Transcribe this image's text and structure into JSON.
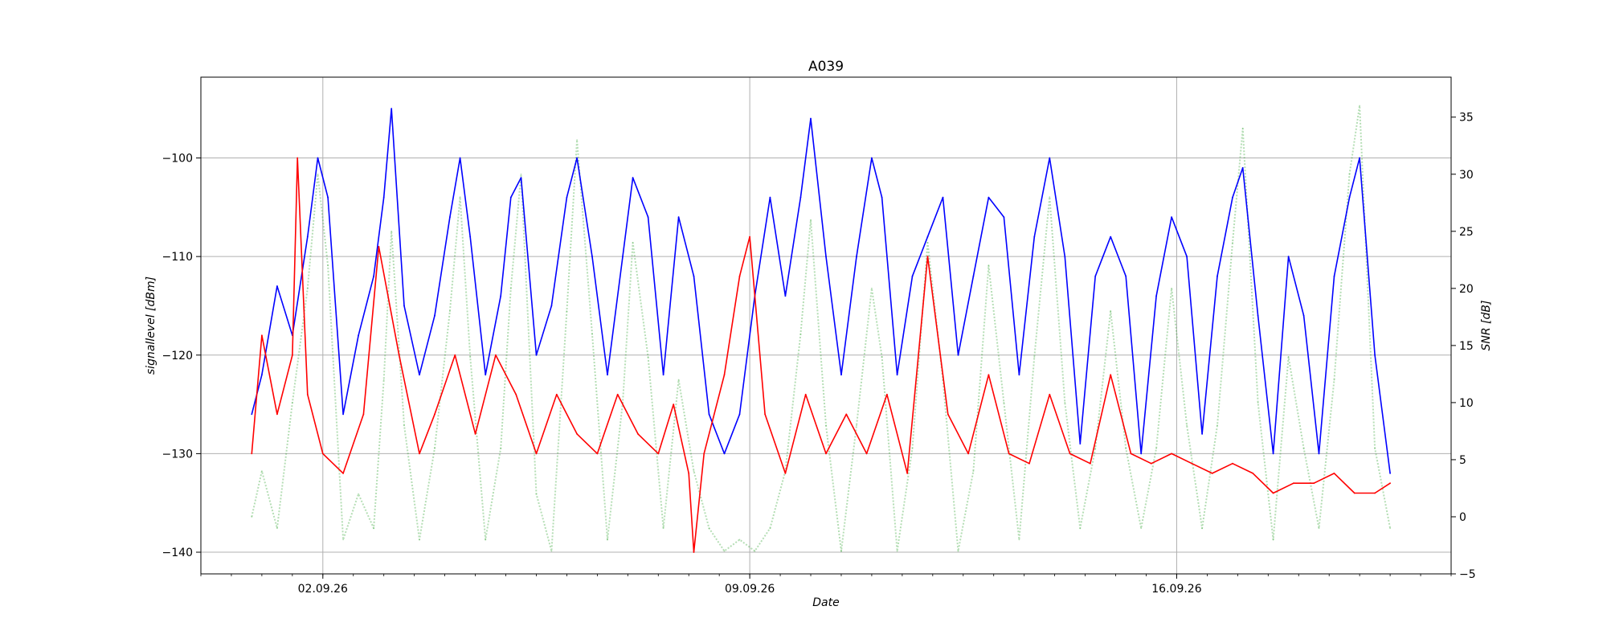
{
  "chart_data": {
    "type": "line",
    "title": "A039",
    "xlabel": "Date",
    "ylabel_left": "signallevel [dBm]",
    "ylabel_right": "SNR [dB]",
    "x_range": [
      "2026-08-31T00:00",
      "2026-09-20T12:00"
    ],
    "x_ticks": [
      {
        "date": "2026-09-02",
        "label": "02.09.26"
      },
      {
        "date": "2026-09-09",
        "label": "09.09.26"
      },
      {
        "date": "2026-09-16",
        "label": "16.09.26"
      }
    ],
    "ylim_left": [
      -142.2,
      -91.8
    ],
    "ylim_right": [
      -5,
      38.5
    ],
    "y_ticks_left": [
      -140,
      -130,
      -120,
      -110,
      -100
    ],
    "y_ticks_right": [
      -5,
      0,
      5,
      10,
      15,
      20,
      25,
      30,
      35
    ],
    "grid": true,
    "series": [
      {
        "axis": "left",
        "color": "#0000ff",
        "style": "solid",
        "points": [
          [
            "2026-08-31T20:00",
            -126
          ],
          [
            "2026-09-01T00:00",
            -122
          ],
          [
            "2026-09-01T06:00",
            -113
          ],
          [
            "2026-09-01T12:00",
            -118
          ],
          [
            "2026-09-01T18:00",
            -108
          ],
          [
            "2026-09-01T22:00",
            -100
          ],
          [
            "2026-09-02T02:00",
            -104
          ],
          [
            "2026-09-02T08:00",
            -126
          ],
          [
            "2026-09-02T14:00",
            -118
          ],
          [
            "2026-09-02T20:00",
            -112
          ],
          [
            "2026-09-03T00:00",
            -104
          ],
          [
            "2026-09-03T03:00",
            -95
          ],
          [
            "2026-09-03T08:00",
            -115
          ],
          [
            "2026-09-03T14:00",
            -122
          ],
          [
            "2026-09-03T20:00",
            -116
          ],
          [
            "2026-09-04T02:00",
            -106
          ],
          [
            "2026-09-04T06:00",
            -100
          ],
          [
            "2026-09-04T10:00",
            -108
          ],
          [
            "2026-09-04T16:00",
            -122
          ],
          [
            "2026-09-04T22:00",
            -114
          ],
          [
            "2026-09-05T02:00",
            -104
          ],
          [
            "2026-09-05T06:00",
            -102
          ],
          [
            "2026-09-05T12:00",
            -120
          ],
          [
            "2026-09-05T18:00",
            -115
          ],
          [
            "2026-09-06T00:00",
            -104
          ],
          [
            "2026-09-06T04:00",
            -100
          ],
          [
            "2026-09-06T10:00",
            -110
          ],
          [
            "2026-09-06T16:00",
            -122
          ],
          [
            "2026-09-06T22:00",
            -110
          ],
          [
            "2026-09-07T02:00",
            -102
          ],
          [
            "2026-09-07T08:00",
            -106
          ],
          [
            "2026-09-07T14:00",
            -122
          ],
          [
            "2026-09-07T20:00",
            -106
          ],
          [
            "2026-09-08T02:00",
            -112
          ],
          [
            "2026-09-08T08:00",
            -126
          ],
          [
            "2026-09-08T14:00",
            -130
          ],
          [
            "2026-09-08T20:00",
            -126
          ],
          [
            "2026-09-09T02:00",
            -114
          ],
          [
            "2026-09-09T08:00",
            -104
          ],
          [
            "2026-09-09T14:00",
            -114
          ],
          [
            "2026-09-09T20:00",
            -104
          ],
          [
            "2026-09-10T00:00",
            -96
          ],
          [
            "2026-09-10T06:00",
            -110
          ],
          [
            "2026-09-10T12:00",
            -122
          ],
          [
            "2026-09-10T18:00",
            -110
          ],
          [
            "2026-09-11T00:00",
            -100
          ],
          [
            "2026-09-11T04:00",
            -104
          ],
          [
            "2026-09-11T10:00",
            -122
          ],
          [
            "2026-09-11T16:00",
            -112
          ],
          [
            "2026-09-11T22:00",
            -108
          ],
          [
            "2026-09-12T04:00",
            -104
          ],
          [
            "2026-09-12T10:00",
            -120
          ],
          [
            "2026-09-12T16:00",
            -112
          ],
          [
            "2026-09-12T22:00",
            -104
          ],
          [
            "2026-09-13T04:00",
            -106
          ],
          [
            "2026-09-13T10:00",
            -122
          ],
          [
            "2026-09-13T16:00",
            -108
          ],
          [
            "2026-09-13T22:00",
            -100
          ],
          [
            "2026-09-14T04:00",
            -110
          ],
          [
            "2026-09-14T10:00",
            -129
          ],
          [
            "2026-09-14T16:00",
            -112
          ],
          [
            "2026-09-14T22:00",
            -108
          ],
          [
            "2026-09-15T04:00",
            -112
          ],
          [
            "2026-09-15T10:00",
            -130
          ],
          [
            "2026-09-15T16:00",
            -114
          ],
          [
            "2026-09-15T22:00",
            -106
          ],
          [
            "2026-09-16T04:00",
            -110
          ],
          [
            "2026-09-16T10:00",
            -128
          ],
          [
            "2026-09-16T16:00",
            -112
          ],
          [
            "2026-09-16T22:00",
            -104
          ],
          [
            "2026-09-17T02:00",
            -101
          ],
          [
            "2026-09-17T08:00",
            -116
          ],
          [
            "2026-09-17T14:00",
            -130
          ],
          [
            "2026-09-17T20:00",
            -110
          ],
          [
            "2026-09-18T02:00",
            -116
          ],
          [
            "2026-09-18T08:00",
            -130
          ],
          [
            "2026-09-18T14:00",
            -112
          ],
          [
            "2026-09-18T20:00",
            -104
          ],
          [
            "2026-09-19T00:00",
            -100
          ],
          [
            "2026-09-19T06:00",
            -120
          ],
          [
            "2026-09-19T12:00",
            -132
          ]
        ]
      },
      {
        "axis": "left",
        "color": "#ff0000",
        "style": "solid",
        "points": [
          [
            "2026-08-31T20:00",
            -130
          ],
          [
            "2026-09-01T00:00",
            -118
          ],
          [
            "2026-09-01T06:00",
            -126
          ],
          [
            "2026-09-01T12:00",
            -120
          ],
          [
            "2026-09-01T14:00",
            -100
          ],
          [
            "2026-09-01T18:00",
            -124
          ],
          [
            "2026-09-02T00:00",
            -130
          ],
          [
            "2026-09-02T08:00",
            -132
          ],
          [
            "2026-09-02T16:00",
            -126
          ],
          [
            "2026-09-02T22:00",
            -109
          ],
          [
            "2026-09-03T06:00",
            -120
          ],
          [
            "2026-09-03T14:00",
            -130
          ],
          [
            "2026-09-03T20:00",
            -126
          ],
          [
            "2026-09-04T04:00",
            -120
          ],
          [
            "2026-09-04T12:00",
            -128
          ],
          [
            "2026-09-04T20:00",
            -120
          ],
          [
            "2026-09-05T04:00",
            -124
          ],
          [
            "2026-09-05T12:00",
            -130
          ],
          [
            "2026-09-05T20:00",
            -124
          ],
          [
            "2026-09-06T04:00",
            -128
          ],
          [
            "2026-09-06T12:00",
            -130
          ],
          [
            "2026-09-06T20:00",
            -124
          ],
          [
            "2026-09-07T04:00",
            -128
          ],
          [
            "2026-09-07T12:00",
            -130
          ],
          [
            "2026-09-07T18:00",
            -125
          ],
          [
            "2026-09-08T00:00",
            -132
          ],
          [
            "2026-09-08T02:00",
            -140
          ],
          [
            "2026-09-08T06:00",
            -130
          ],
          [
            "2026-09-08T14:00",
            -122
          ],
          [
            "2026-09-08T20:00",
            -112
          ],
          [
            "2026-09-09T00:00",
            -108
          ],
          [
            "2026-09-09T06:00",
            -126
          ],
          [
            "2026-09-09T14:00",
            -132
          ],
          [
            "2026-09-09T22:00",
            -124
          ],
          [
            "2026-09-10T06:00",
            -130
          ],
          [
            "2026-09-10T14:00",
            -126
          ],
          [
            "2026-09-10T22:00",
            -130
          ],
          [
            "2026-09-11T06:00",
            -124
          ],
          [
            "2026-09-11T14:00",
            -132
          ],
          [
            "2026-09-11T22:00",
            -110
          ],
          [
            "2026-09-12T06:00",
            -126
          ],
          [
            "2026-09-12T14:00",
            -130
          ],
          [
            "2026-09-12T22:00",
            -122
          ],
          [
            "2026-09-13T06:00",
            -130
          ],
          [
            "2026-09-13T14:00",
            -131
          ],
          [
            "2026-09-13T22:00",
            -124
          ],
          [
            "2026-09-14T06:00",
            -130
          ],
          [
            "2026-09-14T14:00",
            -131
          ],
          [
            "2026-09-14T22:00",
            -122
          ],
          [
            "2026-09-15T06:00",
            -130
          ],
          [
            "2026-09-15T14:00",
            -131
          ],
          [
            "2026-09-15T22:00",
            -130
          ],
          [
            "2026-09-16T06:00",
            -131
          ],
          [
            "2026-09-16T14:00",
            -132
          ],
          [
            "2026-09-16T22:00",
            -131
          ],
          [
            "2026-09-17T06:00",
            -132
          ],
          [
            "2026-09-17T14:00",
            -134
          ],
          [
            "2026-09-17T22:00",
            -133
          ],
          [
            "2026-09-18T06:00",
            -133
          ],
          [
            "2026-09-18T14:00",
            -132
          ],
          [
            "2026-09-18T22:00",
            -134
          ],
          [
            "2026-09-19T06:00",
            -134
          ],
          [
            "2026-09-19T12:00",
            -133
          ]
        ]
      },
      {
        "axis": "right",
        "color": "#2ca02c",
        "style": "dotted",
        "opacity": 0.35,
        "points": [
          [
            "2026-08-31T20:00",
            0
          ],
          [
            "2026-09-01T00:00",
            4
          ],
          [
            "2026-09-01T06:00",
            -1
          ],
          [
            "2026-09-01T12:00",
            10
          ],
          [
            "2026-09-01T18:00",
            20
          ],
          [
            "2026-09-01T22:00",
            30
          ],
          [
            "2026-09-02T02:00",
            22
          ],
          [
            "2026-09-02T08:00",
            -2
          ],
          [
            "2026-09-02T14:00",
            2
          ],
          [
            "2026-09-02T20:00",
            -1
          ],
          [
            "2026-09-03T00:00",
            12
          ],
          [
            "2026-09-03T03:00",
            25
          ],
          [
            "2026-09-03T08:00",
            8
          ],
          [
            "2026-09-03T14:00",
            -2
          ],
          [
            "2026-09-03T20:00",
            6
          ],
          [
            "2026-09-04T02:00",
            18
          ],
          [
            "2026-09-04T06:00",
            28
          ],
          [
            "2026-09-04T10:00",
            14
          ],
          [
            "2026-09-04T16:00",
            -2
          ],
          [
            "2026-09-04T22:00",
            6
          ],
          [
            "2026-09-05T02:00",
            20
          ],
          [
            "2026-09-05T06:00",
            30
          ],
          [
            "2026-09-05T12:00",
            2
          ],
          [
            "2026-09-05T18:00",
            -3
          ],
          [
            "2026-09-06T00:00",
            18
          ],
          [
            "2026-09-06T04:00",
            33
          ],
          [
            "2026-09-06T10:00",
            16
          ],
          [
            "2026-09-06T16:00",
            -2
          ],
          [
            "2026-09-06T22:00",
            10
          ],
          [
            "2026-09-07T02:00",
            24
          ],
          [
            "2026-09-07T08:00",
            14
          ],
          [
            "2026-09-07T14:00",
            -1
          ],
          [
            "2026-09-07T20:00",
            12
          ],
          [
            "2026-09-08T02:00",
            4
          ],
          [
            "2026-09-08T08:00",
            -1
          ],
          [
            "2026-09-08T14:00",
            -3
          ],
          [
            "2026-09-08T20:00",
            -2
          ],
          [
            "2026-09-09T02:00",
            -3
          ],
          [
            "2026-09-09T08:00",
            -1
          ],
          [
            "2026-09-09T14:00",
            4
          ],
          [
            "2026-09-09T20:00",
            16
          ],
          [
            "2026-09-10T00:00",
            26
          ],
          [
            "2026-09-10T06:00",
            8
          ],
          [
            "2026-09-10T12:00",
            -3
          ],
          [
            "2026-09-10T18:00",
            8
          ],
          [
            "2026-09-11T00:00",
            20
          ],
          [
            "2026-09-11T04:00",
            14
          ],
          [
            "2026-09-11T10:00",
            -3
          ],
          [
            "2026-09-11T16:00",
            6
          ],
          [
            "2026-09-11T22:00",
            24
          ],
          [
            "2026-09-12T04:00",
            12
          ],
          [
            "2026-09-12T10:00",
            -3
          ],
          [
            "2026-09-12T16:00",
            4
          ],
          [
            "2026-09-12T22:00",
            22
          ],
          [
            "2026-09-13T04:00",
            10
          ],
          [
            "2026-09-13T10:00",
            -2
          ],
          [
            "2026-09-13T16:00",
            14
          ],
          [
            "2026-09-13T22:00",
            28
          ],
          [
            "2026-09-14T04:00",
            10
          ],
          [
            "2026-09-14T10:00",
            -1
          ],
          [
            "2026-09-14T16:00",
            6
          ],
          [
            "2026-09-14T22:00",
            18
          ],
          [
            "2026-09-15T04:00",
            6
          ],
          [
            "2026-09-15T10:00",
            -1
          ],
          [
            "2026-09-15T16:00",
            6
          ],
          [
            "2026-09-15T22:00",
            20
          ],
          [
            "2026-09-16T04:00",
            8
          ],
          [
            "2026-09-16T10:00",
            -1
          ],
          [
            "2026-09-16T16:00",
            8
          ],
          [
            "2026-09-16T22:00",
            24
          ],
          [
            "2026-09-17T02:00",
            34
          ],
          [
            "2026-09-17T08:00",
            10
          ],
          [
            "2026-09-17T14:00",
            -2
          ],
          [
            "2026-09-17T20:00",
            14
          ],
          [
            "2026-09-18T02:00",
            6
          ],
          [
            "2026-09-18T08:00",
            -1
          ],
          [
            "2026-09-18T14:00",
            12
          ],
          [
            "2026-09-18T20:00",
            30
          ],
          [
            "2026-09-19T00:00",
            36
          ],
          [
            "2026-09-19T06:00",
            6
          ],
          [
            "2026-09-19T12:00",
            -1
          ]
        ]
      }
    ]
  }
}
